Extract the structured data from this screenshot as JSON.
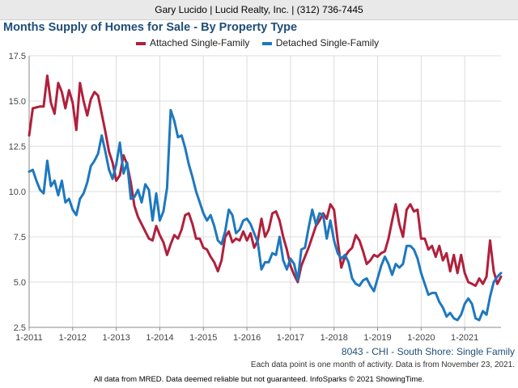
{
  "header": {
    "agent_line": "Gary Lucido | Lucid Realty, Inc. | (312) 736-7445"
  },
  "colors": {
    "attached": "#b0203c",
    "detached": "#1e78be",
    "title": "#1f4e78",
    "grid": "#dcdcdc"
  },
  "chart_data": {
    "type": "line",
    "title": "Months Supply of Homes for Sale - By Property Type",
    "xlabel": "",
    "ylabel": "",
    "x_ticks": [
      "1-2011",
      "1-2012",
      "1-2013",
      "1-2014",
      "1-2015",
      "1-2016",
      "1-2017",
      "1-2018",
      "1-2019",
      "1-2020",
      "1-2021"
    ],
    "x_range": [
      "2011-01",
      "2021-11"
    ],
    "y_ticks": [
      "2.5",
      "5.0",
      "7.5",
      "10.0",
      "12.5",
      "15.0",
      "17.5"
    ],
    "ylim": [
      2.5,
      17.5
    ],
    "grid": true,
    "legend_position": "top",
    "series": [
      {
        "name": "Attached Single-Family",
        "key": "attached",
        "points": [
          [
            "2011-01",
            13.1
          ],
          [
            "2011-02",
            14.6
          ],
          [
            "2011-04",
            14.7
          ],
          [
            "2011-05",
            14.7
          ],
          [
            "2011-06",
            16.4
          ],
          [
            "2011-07",
            14.9
          ],
          [
            "2011-08",
            14.3
          ],
          [
            "2011-09",
            16.0
          ],
          [
            "2011-10",
            15.5
          ],
          [
            "2011-11",
            14.6
          ],
          [
            "2011-12",
            15.6
          ],
          [
            "2012-01",
            14.9
          ],
          [
            "2012-02",
            13.4
          ],
          [
            "2012-03",
            16.0
          ],
          [
            "2012-04",
            15.0
          ],
          [
            "2012-05",
            14.2
          ],
          [
            "2012-06",
            15.1
          ],
          [
            "2012-07",
            15.5
          ],
          [
            "2012-08",
            15.3
          ],
          [
            "2012-09",
            14.3
          ],
          [
            "2012-10",
            13.3
          ],
          [
            "2012-11",
            12.2
          ],
          [
            "2012-12",
            11.6
          ],
          [
            "2013-01",
            10.6
          ],
          [
            "2013-02",
            10.9
          ],
          [
            "2013-03",
            12.0
          ],
          [
            "2013-04",
            11.5
          ],
          [
            "2013-05",
            10.5
          ],
          [
            "2013-06",
            9.2
          ],
          [
            "2013-07",
            8.6
          ],
          [
            "2013-08",
            8.2
          ],
          [
            "2013-09",
            7.8
          ],
          [
            "2013-10",
            7.4
          ],
          [
            "2013-11",
            7.3
          ],
          [
            "2013-12",
            8.1
          ],
          [
            "2014-01",
            7.6
          ],
          [
            "2014-02",
            7.2
          ],
          [
            "2014-03",
            6.5
          ],
          [
            "2014-04",
            7.1
          ],
          [
            "2014-05",
            7.6
          ],
          [
            "2014-06",
            7.4
          ],
          [
            "2014-07",
            7.9
          ],
          [
            "2014-08",
            8.7
          ],
          [
            "2014-09",
            8.8
          ],
          [
            "2014-10",
            8.2
          ],
          [
            "2014-11",
            7.4
          ],
          [
            "2014-12",
            7.4
          ],
          [
            "2015-01",
            6.9
          ],
          [
            "2015-02",
            6.8
          ],
          [
            "2015-03",
            6.4
          ],
          [
            "2015-04",
            6.1
          ],
          [
            "2015-05",
            5.6
          ],
          [
            "2015-06",
            6.2
          ],
          [
            "2015-07",
            7.5
          ],
          [
            "2015-08",
            7.8
          ],
          [
            "2015-09",
            7.2
          ],
          [
            "2015-10",
            7.4
          ],
          [
            "2015-11",
            7.3
          ],
          [
            "2015-12",
            7.8
          ],
          [
            "2016-01",
            7.3
          ],
          [
            "2016-02",
            7.7
          ],
          [
            "2016-03",
            6.9
          ],
          [
            "2016-04",
            7.3
          ],
          [
            "2016-05",
            8.5
          ],
          [
            "2016-06",
            7.5
          ],
          [
            "2016-07",
            7.9
          ],
          [
            "2016-08",
            8.8
          ],
          [
            "2016-09",
            8.9
          ],
          [
            "2016-10",
            8.4
          ],
          [
            "2016-11",
            7.5
          ],
          [
            "2016-12",
            6.8
          ],
          [
            "2017-01",
            5.9
          ],
          [
            "2017-02",
            5.4
          ],
          [
            "2017-03",
            5.0
          ],
          [
            "2017-04",
            5.9
          ],
          [
            "2017-05",
            6.4
          ],
          [
            "2017-06",
            6.9
          ],
          [
            "2017-07",
            7.5
          ],
          [
            "2017-08",
            8.1
          ],
          [
            "2017-09",
            8.4
          ],
          [
            "2017-10",
            8.8
          ],
          [
            "2017-11",
            8.5
          ],
          [
            "2017-12",
            9.3
          ],
          [
            "2018-01",
            9.0
          ],
          [
            "2018-02",
            7.3
          ],
          [
            "2018-03",
            5.8
          ],
          [
            "2018-04",
            6.4
          ],
          [
            "2018-05",
            6.7
          ],
          [
            "2018-06",
            6.9
          ],
          [
            "2018-07",
            7.6
          ],
          [
            "2018-08",
            7.3
          ],
          [
            "2018-09",
            6.7
          ],
          [
            "2018-10",
            6.0
          ],
          [
            "2018-11",
            6.2
          ],
          [
            "2018-12",
            6.5
          ],
          [
            "2019-01",
            6.4
          ],
          [
            "2019-02",
            6.6
          ],
          [
            "2019-03",
            6.7
          ],
          [
            "2019-04",
            7.4
          ],
          [
            "2019-05",
            8.4
          ],
          [
            "2019-06",
            9.3
          ],
          [
            "2019-07",
            8.2
          ],
          [
            "2019-08",
            7.5
          ],
          [
            "2019-09",
            9.0
          ],
          [
            "2019-10",
            9.3
          ],
          [
            "2019-11",
            8.9
          ],
          [
            "2019-12",
            9.0
          ],
          [
            "2020-01",
            7.4
          ],
          [
            "2020-02",
            7.4
          ],
          [
            "2020-03",
            6.8
          ],
          [
            "2020-04",
            7.0
          ],
          [
            "2020-05",
            6.4
          ],
          [
            "2020-06",
            7.0
          ],
          [
            "2020-07",
            6.2
          ],
          [
            "2020-08",
            6.6
          ],
          [
            "2020-09",
            5.6
          ],
          [
            "2020-10",
            6.5
          ],
          [
            "2020-11",
            5.5
          ],
          [
            "2020-12",
            6.5
          ],
          [
            "2021-01",
            5.5
          ],
          [
            "2021-02",
            5.0
          ],
          [
            "2021-03",
            4.9
          ],
          [
            "2021-04",
            4.8
          ],
          [
            "2021-05",
            5.2
          ],
          [
            "2021-06",
            4.9
          ],
          [
            "2021-07",
            5.3
          ],
          [
            "2021-08",
            7.3
          ],
          [
            "2021-09",
            5.6
          ],
          [
            "2021-10",
            4.9
          ],
          [
            "2021-11",
            5.3
          ]
        ]
      },
      {
        "name": "Detached Single-Family",
        "key": "detached",
        "points": [
          [
            "2011-01",
            11.1
          ],
          [
            "2011-02",
            11.2
          ],
          [
            "2011-03",
            10.6
          ],
          [
            "2011-04",
            10.1
          ],
          [
            "2011-05",
            9.9
          ],
          [
            "2011-06",
            11.7
          ],
          [
            "2011-07",
            10.3
          ],
          [
            "2011-08",
            10.6
          ],
          [
            "2011-09",
            9.8
          ],
          [
            "2011-10",
            10.6
          ],
          [
            "2011-11",
            9.4
          ],
          [
            "2011-12",
            9.6
          ],
          [
            "2012-01",
            9.0
          ],
          [
            "2012-02",
            8.7
          ],
          [
            "2012-03",
            9.6
          ],
          [
            "2012-04",
            9.9
          ],
          [
            "2012-05",
            10.5
          ],
          [
            "2012-06",
            11.4
          ],
          [
            "2012-07",
            11.7
          ],
          [
            "2012-08",
            12.1
          ],
          [
            "2012-09",
            13.1
          ],
          [
            "2012-10",
            12.2
          ],
          [
            "2012-11",
            11.2
          ],
          [
            "2012-12",
            10.7
          ],
          [
            "2013-01",
            11.5
          ],
          [
            "2013-02",
            12.7
          ],
          [
            "2013-03",
            11.0
          ],
          [
            "2013-04",
            11.6
          ],
          [
            "2013-05",
            9.6
          ],
          [
            "2013-06",
            9.7
          ],
          [
            "2013-07",
            10.1
          ],
          [
            "2013-08",
            9.4
          ],
          [
            "2013-09",
            10.4
          ],
          [
            "2013-10",
            10.1
          ],
          [
            "2013-11",
            8.4
          ],
          [
            "2013-12",
            9.9
          ],
          [
            "2014-01",
            8.4
          ],
          [
            "2014-02",
            8.9
          ],
          [
            "2014-03",
            10.2
          ],
          [
            "2014-04",
            14.5
          ],
          [
            "2014-05",
            13.9
          ],
          [
            "2014-06",
            13.0
          ],
          [
            "2014-07",
            13.1
          ],
          [
            "2014-08",
            12.4
          ],
          [
            "2014-09",
            11.5
          ],
          [
            "2014-10",
            10.8
          ],
          [
            "2014-11",
            10.0
          ],
          [
            "2014-12",
            9.4
          ],
          [
            "2015-01",
            8.8
          ],
          [
            "2015-02",
            8.4
          ],
          [
            "2015-03",
            8.7
          ],
          [
            "2015-04",
            8.1
          ],
          [
            "2015-05",
            7.3
          ],
          [
            "2015-06",
            7.1
          ],
          [
            "2015-07",
            7.8
          ],
          [
            "2015-08",
            9.0
          ],
          [
            "2015-09",
            8.7
          ],
          [
            "2015-10",
            7.7
          ],
          [
            "2015-11",
            7.9
          ],
          [
            "2015-12",
            8.4
          ],
          [
            "2016-01",
            8.5
          ],
          [
            "2016-02",
            8.2
          ],
          [
            "2016-03",
            7.7
          ],
          [
            "2016-04",
            7.2
          ],
          [
            "2016-05",
            5.7
          ],
          [
            "2016-06",
            6.1
          ],
          [
            "2016-07",
            6.1
          ],
          [
            "2016-08",
            6.6
          ],
          [
            "2016-09",
            6.5
          ],
          [
            "2016-10",
            7.5
          ],
          [
            "2016-11",
            6.2
          ],
          [
            "2016-12",
            5.7
          ],
          [
            "2017-01",
            6.3
          ],
          [
            "2017-02",
            6.0
          ],
          [
            "2017-03",
            5.1
          ],
          [
            "2017-04",
            6.8
          ],
          [
            "2017-05",
            6.9
          ],
          [
            "2017-06",
            8.0
          ],
          [
            "2017-07",
            9.0
          ],
          [
            "2017-08",
            8.2
          ],
          [
            "2017-09",
            8.8
          ],
          [
            "2017-10",
            8.7
          ],
          [
            "2017-11",
            7.4
          ],
          [
            "2017-12",
            8.4
          ],
          [
            "2018-01",
            7.3
          ],
          [
            "2018-02",
            6.6
          ],
          [
            "2018-03",
            6.3
          ],
          [
            "2018-04",
            6.5
          ],
          [
            "2018-05",
            6.1
          ],
          [
            "2018-06",
            5.2
          ],
          [
            "2018-07",
            4.9
          ],
          [
            "2018-08",
            4.8
          ],
          [
            "2018-09",
            5.1
          ],
          [
            "2018-10",
            5.2
          ],
          [
            "2018-11",
            4.8
          ],
          [
            "2018-12",
            4.5
          ],
          [
            "2019-01",
            5.2
          ],
          [
            "2019-02",
            5.9
          ],
          [
            "2019-03",
            6.4
          ],
          [
            "2019-04",
            6.0
          ],
          [
            "2019-05",
            5.4
          ],
          [
            "2019-06",
            6.0
          ],
          [
            "2019-07",
            5.8
          ],
          [
            "2019-08",
            6.0
          ],
          [
            "2019-09",
            7.0
          ],
          [
            "2019-10",
            7.0
          ],
          [
            "2019-11",
            6.8
          ],
          [
            "2019-12",
            6.3
          ],
          [
            "2020-01",
            5.5
          ],
          [
            "2020-02",
            4.9
          ],
          [
            "2020-03",
            4.3
          ],
          [
            "2020-04",
            4.4
          ],
          [
            "2020-05",
            4.4
          ],
          [
            "2020-06",
            3.9
          ],
          [
            "2020-07",
            3.6
          ],
          [
            "2020-08",
            3.1
          ],
          [
            "2020-09",
            3.3
          ],
          [
            "2020-10",
            3.0
          ],
          [
            "2020-11",
            2.9
          ],
          [
            "2020-12",
            3.2
          ],
          [
            "2021-01",
            3.8
          ],
          [
            "2021-02",
            4.1
          ],
          [
            "2021-03",
            3.8
          ],
          [
            "2021-04",
            3.0
          ],
          [
            "2021-05",
            2.9
          ],
          [
            "2021-06",
            3.4
          ],
          [
            "2021-07",
            3.2
          ],
          [
            "2021-08",
            4.2
          ],
          [
            "2021-09",
            5.0
          ],
          [
            "2021-10",
            5.3
          ],
          [
            "2021-11",
            5.5
          ]
        ]
      }
    ]
  },
  "area_label": "8043 - CHI - South Shore: Single Family",
  "footnote": "Each data point is one month of activity. Data is from November 23, 2021.",
  "footer": "All data from MRED. Data deemed reliable but not guaranteed. InfoSparks © 2021 ShowingTime."
}
